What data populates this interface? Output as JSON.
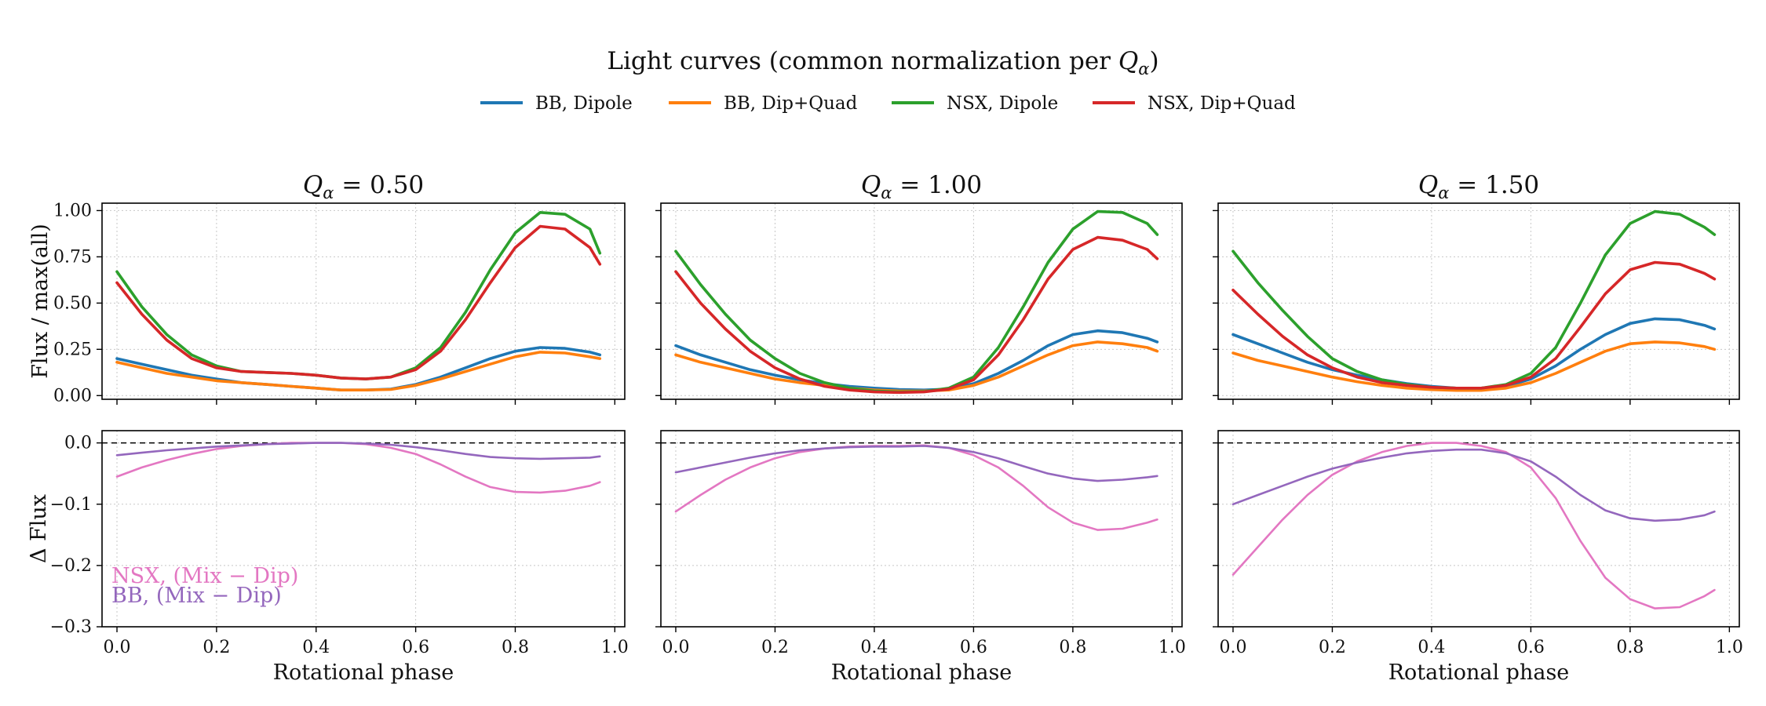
{
  "chart_data": {
    "type": "line",
    "title": "Light curves (common normalization per Qα)",
    "title_prefix": "Light curves (common normalization per ",
    "title_symbol": "Q",
    "title_sub": "α",
    "title_suffix": ")",
    "legend": [
      {
        "key": "bb_dip",
        "label": "BB, Dipole",
        "color": "#1f77b4"
      },
      {
        "key": "bb_mix",
        "label": "BB, Dip+Quad",
        "color": "#ff7f0e"
      },
      {
        "key": "nsx_dip",
        "label": "NSX, Dipole",
        "color": "#2ca02c"
      },
      {
        "key": "nsx_mix",
        "label": "NSX, Dip+Quad",
        "color": "#d62728"
      }
    ],
    "diff_series": [
      {
        "key": "nsx_diff",
        "label": "NSX, (Mix − Dip)",
        "color": "#e377c2"
      },
      {
        "key": "bb_diff",
        "label": "BB, (Mix − Dip)",
        "color": "#9467bd"
      }
    ],
    "xlabel": "Rotational phase",
    "ylabel_top": "Flux / max(all)",
    "ylabel_bottom": "Δ Flux",
    "xlim": [
      -0.03,
      1.02
    ],
    "ylim_top": [
      -0.02,
      1.04
    ],
    "ylim_bottom": [
      -0.3,
      0.02
    ],
    "xticks": [
      0.0,
      0.2,
      0.4,
      0.6,
      0.8,
      1.0
    ],
    "xtick_labels": [
      "0.0",
      "0.2",
      "0.4",
      "0.6",
      "0.8",
      "1.0"
    ],
    "yticks_top": [
      0.0,
      0.25,
      0.5,
      0.75,
      1.0
    ],
    "ytick_labels_top": [
      "0.00",
      "0.25",
      "0.50",
      "0.75",
      "1.00"
    ],
    "yticks_bottom": [
      0.0,
      -0.1,
      -0.2,
      -0.3
    ],
    "ytick_labels_bottom": [
      "0.0",
      "−0.1",
      "−0.2",
      "−0.3"
    ],
    "x": [
      0.0,
      0.05,
      0.1,
      0.15,
      0.2,
      0.25,
      0.3,
      0.35,
      0.4,
      0.45,
      0.5,
      0.55,
      0.6,
      0.65,
      0.7,
      0.75,
      0.8,
      0.85,
      0.9,
      0.95,
      0.97
    ],
    "panels": [
      {
        "q_label": "Qα = 0.50",
        "q_value": "0.50",
        "series": {
          "bb_dip": [
            0.2,
            0.17,
            0.14,
            0.11,
            0.09,
            0.07,
            0.06,
            0.05,
            0.04,
            0.03,
            0.03,
            0.035,
            0.06,
            0.1,
            0.15,
            0.2,
            0.24,
            0.26,
            0.255,
            0.235,
            0.22
          ],
          "bb_mix": [
            0.18,
            0.15,
            0.12,
            0.1,
            0.08,
            0.07,
            0.06,
            0.05,
            0.04,
            0.03,
            0.03,
            0.033,
            0.055,
            0.09,
            0.13,
            0.17,
            0.21,
            0.235,
            0.23,
            0.21,
            0.2
          ],
          "nsx_dip": [
            0.67,
            0.48,
            0.33,
            0.22,
            0.16,
            0.13,
            0.125,
            0.12,
            0.11,
            0.095,
            0.09,
            0.1,
            0.15,
            0.26,
            0.45,
            0.68,
            0.88,
            0.99,
            0.98,
            0.9,
            0.77
          ],
          "nsx_mix": [
            0.61,
            0.44,
            0.3,
            0.2,
            0.15,
            0.13,
            0.125,
            0.12,
            0.11,
            0.095,
            0.09,
            0.1,
            0.14,
            0.24,
            0.41,
            0.61,
            0.8,
            0.915,
            0.9,
            0.8,
            0.71
          ]
        },
        "diffs": {
          "nsx_diff": [
            -0.055,
            -0.04,
            -0.028,
            -0.018,
            -0.01,
            -0.005,
            -0.002,
            0.0,
            0.0,
            0.0,
            -0.002,
            -0.008,
            -0.018,
            -0.035,
            -0.055,
            -0.072,
            -0.08,
            -0.081,
            -0.078,
            -0.07,
            -0.064
          ],
          "bb_diff": [
            -0.02,
            -0.016,
            -0.012,
            -0.009,
            -0.006,
            -0.004,
            -0.002,
            -0.001,
            0.0,
            0.0,
            -0.001,
            -0.003,
            -0.007,
            -0.012,
            -0.018,
            -0.023,
            -0.025,
            -0.026,
            -0.025,
            -0.024,
            -0.022
          ]
        }
      },
      {
        "q_label": "Qα = 1.00",
        "q_value": "1.00",
        "series": {
          "bb_dip": [
            0.27,
            0.22,
            0.18,
            0.14,
            0.11,
            0.085,
            0.065,
            0.05,
            0.04,
            0.033,
            0.03,
            0.035,
            0.065,
            0.12,
            0.19,
            0.27,
            0.33,
            0.35,
            0.34,
            0.31,
            0.29
          ],
          "bb_mix": [
            0.22,
            0.18,
            0.15,
            0.12,
            0.09,
            0.07,
            0.055,
            0.04,
            0.03,
            0.025,
            0.025,
            0.03,
            0.055,
            0.1,
            0.16,
            0.22,
            0.27,
            0.29,
            0.28,
            0.26,
            0.24
          ],
          "nsx_dip": [
            0.78,
            0.6,
            0.44,
            0.3,
            0.2,
            0.12,
            0.07,
            0.04,
            0.025,
            0.02,
            0.022,
            0.04,
            0.1,
            0.26,
            0.48,
            0.72,
            0.9,
            0.995,
            0.99,
            0.93,
            0.87
          ],
          "nsx_mix": [
            0.67,
            0.5,
            0.36,
            0.24,
            0.15,
            0.09,
            0.05,
            0.03,
            0.02,
            0.017,
            0.02,
            0.035,
            0.085,
            0.22,
            0.41,
            0.63,
            0.79,
            0.855,
            0.84,
            0.79,
            0.74
          ]
        },
        "diffs": {
          "nsx_diff": [
            -0.112,
            -0.085,
            -0.06,
            -0.04,
            -0.025,
            -0.015,
            -0.009,
            -0.006,
            -0.005,
            -0.005,
            -0.004,
            -0.008,
            -0.02,
            -0.04,
            -0.07,
            -0.105,
            -0.13,
            -0.142,
            -0.14,
            -0.13,
            -0.125
          ],
          "bb_diff": [
            -0.048,
            -0.04,
            -0.032,
            -0.024,
            -0.017,
            -0.012,
            -0.009,
            -0.007,
            -0.006,
            -0.006,
            -0.005,
            -0.008,
            -0.015,
            -0.025,
            -0.038,
            -0.05,
            -0.058,
            -0.062,
            -0.06,
            -0.056,
            -0.054
          ]
        }
      },
      {
        "q_label": "Qα = 1.50",
        "q_value": "1.50",
        "series": {
          "bb_dip": [
            0.33,
            0.28,
            0.23,
            0.18,
            0.14,
            0.11,
            0.085,
            0.065,
            0.05,
            0.04,
            0.04,
            0.05,
            0.09,
            0.16,
            0.25,
            0.33,
            0.39,
            0.415,
            0.41,
            0.38,
            0.36
          ],
          "bb_mix": [
            0.23,
            0.19,
            0.16,
            0.13,
            0.1,
            0.075,
            0.055,
            0.04,
            0.032,
            0.028,
            0.028,
            0.04,
            0.07,
            0.12,
            0.18,
            0.24,
            0.28,
            0.29,
            0.285,
            0.265,
            0.25
          ],
          "nsx_dip": [
            0.78,
            0.61,
            0.46,
            0.32,
            0.2,
            0.13,
            0.085,
            0.06,
            0.045,
            0.04,
            0.04,
            0.06,
            0.12,
            0.26,
            0.5,
            0.76,
            0.93,
            0.995,
            0.98,
            0.91,
            0.87
          ],
          "nsx_mix": [
            0.57,
            0.44,
            0.32,
            0.22,
            0.15,
            0.1,
            0.07,
            0.055,
            0.045,
            0.04,
            0.04,
            0.055,
            0.1,
            0.2,
            0.37,
            0.55,
            0.68,
            0.72,
            0.71,
            0.66,
            0.63
          ]
        },
        "diffs": {
          "nsx_diff": [
            -0.215,
            -0.17,
            -0.125,
            -0.085,
            -0.052,
            -0.03,
            -0.015,
            -0.005,
            0.0,
            0.0,
            -0.005,
            -0.015,
            -0.04,
            -0.09,
            -0.16,
            -0.22,
            -0.255,
            -0.27,
            -0.268,
            -0.25,
            -0.24
          ],
          "bb_diff": [
            -0.1,
            -0.085,
            -0.07,
            -0.055,
            -0.042,
            -0.032,
            -0.024,
            -0.017,
            -0.013,
            -0.011,
            -0.011,
            -0.017,
            -0.03,
            -0.055,
            -0.085,
            -0.11,
            -0.123,
            -0.127,
            -0.125,
            -0.118,
            -0.112
          ]
        }
      }
    ]
  }
}
